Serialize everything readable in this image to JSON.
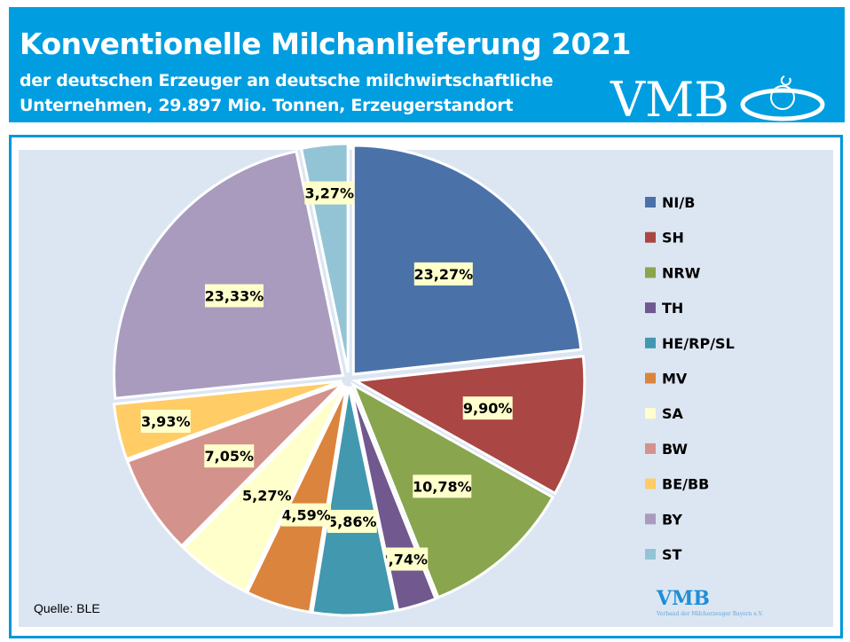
{
  "header": {
    "title": "Konventionelle Milchanlieferung 2021",
    "subtitle_line1": "der deutschen Erzeuger an deutsche milchwirtschaftliche",
    "subtitle_line2": "Unternehmen, 29.897 Mio. Tonnen, Erzeugerstandort",
    "logo": "VMB"
  },
  "footer": {
    "source": "Quelle: BLE",
    "logo": "VMB",
    "logo_sub": "Verband der Milcherzeuger Bayern e.V."
  },
  "chart_data": {
    "type": "pie",
    "title": "Konventionelle Milchanlieferung 2021",
    "legend_position": "right",
    "start": "12 o'clock, clockwise",
    "exploded": true,
    "label_bg": "#ffffcc",
    "slices": [
      {
        "name": "NI/B",
        "value": 23.27,
        "label": "23,27%",
        "color": "#4a72a8"
      },
      {
        "name": "SH",
        "value": 9.9,
        "label": "9,90%",
        "color": "#aa4643"
      },
      {
        "name": "NRW",
        "value": 10.78,
        "label": "10,78%",
        "color": "#89a54e"
      },
      {
        "name": "TH",
        "value": 2.74,
        "label": "2,74%",
        "color": "#71588f"
      },
      {
        "name": "HE/RP/SL",
        "value": 5.86,
        "label": "5,86%",
        "color": "#4198af"
      },
      {
        "name": "MV",
        "value": 4.59,
        "label": "4,59%",
        "color": "#db843d"
      },
      {
        "name": "SA",
        "value": 5.27,
        "label": "5,27%",
        "color": "#ffffcc"
      },
      {
        "name": "BW",
        "value": 7.05,
        "label": "7,05%",
        "color": "#d4928c"
      },
      {
        "name": "BE/BB",
        "value": 3.93,
        "label": "3,93%",
        "color": "#ffcc66"
      },
      {
        "name": "BY",
        "value": 23.33,
        "label": "23,33%",
        "color": "#a99bbd"
      },
      {
        "name": "ST",
        "value": 3.27,
        "label": "3,27%",
        "color": "#93c4d6"
      }
    ]
  }
}
